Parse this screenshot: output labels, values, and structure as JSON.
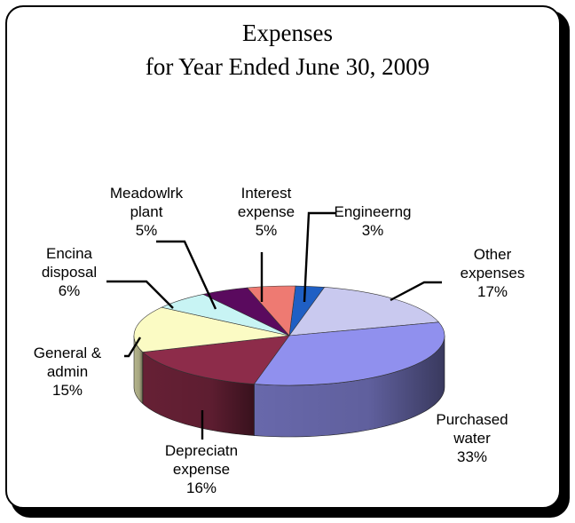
{
  "chart_data": {
    "type": "pie",
    "title": "Expenses",
    "subtitle": "for Year Ended June 30, 2009",
    "slices": [
      {
        "label": [
          "Engineerng"
        ],
        "value": 3,
        "pct_label": "3%",
        "color": "#1f5fc4"
      },
      {
        "label": [
          "Other",
          "expenses"
        ],
        "value": 17,
        "pct_label": "17%",
        "color": "#c9c9ef"
      },
      {
        "label": [
          "Purchased",
          "water"
        ],
        "value": 33,
        "pct_label": "33%",
        "color": "#9090ee"
      },
      {
        "label": [
          "Depreciatn",
          "expense"
        ],
        "value": 16,
        "pct_label": "16%",
        "color": "#8d2c4a"
      },
      {
        "label": [
          "General &",
          "admin"
        ],
        "value": 15,
        "pct_label": "15%",
        "color": "#fbfbc4"
      },
      {
        "label": [
          "Encina",
          "disposal"
        ],
        "value": 6,
        "pct_label": "6%",
        "color": "#c8f4f4"
      },
      {
        "label": [
          "Meadowlrk",
          "plant"
        ],
        "value": 5,
        "pct_label": "5%",
        "color": "#5a0a5e"
      },
      {
        "label": [
          "Interest",
          "expense"
        ],
        "value": 5,
        "pct_label": "5%",
        "color": "#ee7a72"
      }
    ]
  }
}
